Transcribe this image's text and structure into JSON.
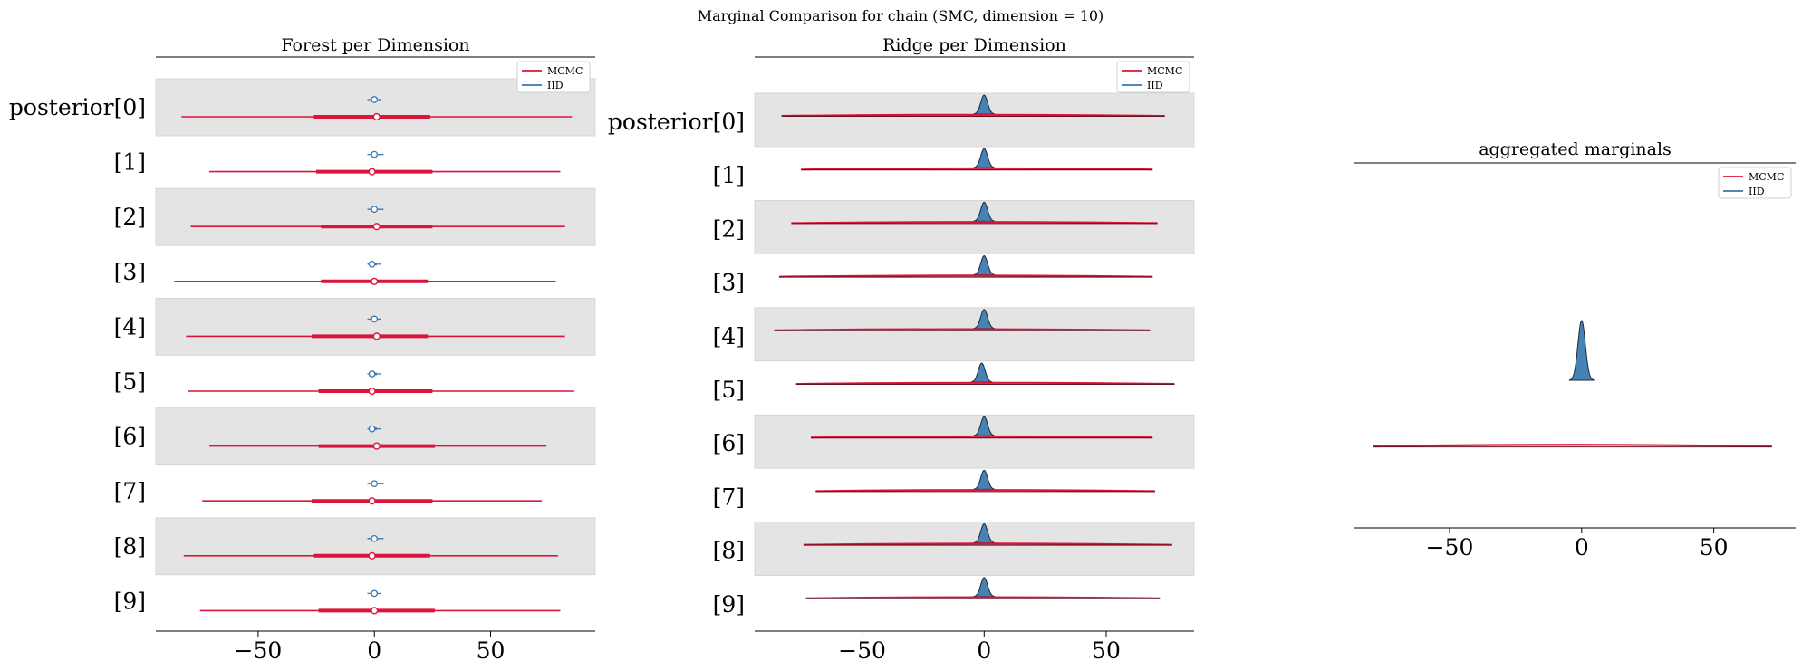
{
  "figure": {
    "suptitle": "Marginal Comparison for chain (SMC, dimension = 10)"
  },
  "colors": {
    "mcmc": "#dc143c",
    "iid": "#3a78b0",
    "iid_fill": "#4682b4",
    "band": "#e4e4e4"
  },
  "chart_data": [
    {
      "type": "forest",
      "title": "Forest per Dimension",
      "xlabel": "",
      "ylabel": "",
      "xlim": [
        -94,
        95
      ],
      "xticks": [
        -50,
        0,
        50
      ],
      "xticklabels": [
        "−50",
        "0",
        "50"
      ],
      "labels": [
        "posterior[0]",
        "[1]",
        "[2]",
        "[3]",
        "[4]",
        "[5]",
        "[6]",
        "[7]",
        "[8]",
        "[9]"
      ],
      "legend": {
        "placement": "top-right",
        "entries": [
          "MCMC",
          "IID"
        ]
      },
      "series": [
        {
          "name": "MCMC",
          "rows": [
            {
              "hdi94": [
                -83,
                85
              ],
              "iqr": [
                -26,
                24
              ],
              "median": 1
            },
            {
              "hdi94": [
                -71,
                80
              ],
              "iqr": [
                -25,
                25
              ],
              "median": -1
            },
            {
              "hdi94": [
                -79,
                82
              ],
              "iqr": [
                -23,
                25
              ],
              "median": 1
            },
            {
              "hdi94": [
                -86,
                78
              ],
              "iqr": [
                -23,
                23
              ],
              "median": 0
            },
            {
              "hdi94": [
                -81,
                82
              ],
              "iqr": [
                -27,
                23
              ],
              "median": 1
            },
            {
              "hdi94": [
                -80,
                86
              ],
              "iqr": [
                -24,
                25
              ],
              "median": -1
            },
            {
              "hdi94": [
                -71,
                74
              ],
              "iqr": [
                -24,
                26
              ],
              "median": 1
            },
            {
              "hdi94": [
                -74,
                72
              ],
              "iqr": [
                -27,
                25
              ],
              "median": -1
            },
            {
              "hdi94": [
                -82,
                79
              ],
              "iqr": [
                -26,
                24
              ],
              "median": -1
            },
            {
              "hdi94": [
                -75,
                80
              ],
              "iqr": [
                -24,
                26
              ],
              "median": 0
            }
          ]
        },
        {
          "name": "IID",
          "rows": [
            {
              "hdi94": [
                -3,
                3
              ],
              "iqr": [
                -1,
                1
              ],
              "median": 0
            },
            {
              "hdi94": [
                -3,
                4
              ],
              "iqr": [
                -1,
                1
              ],
              "median": 0
            },
            {
              "hdi94": [
                -3,
                4
              ],
              "iqr": [
                -1,
                1
              ],
              "median": 0
            },
            {
              "hdi94": [
                -3,
                3
              ],
              "iqr": [
                -1,
                1
              ],
              "median": -1
            },
            {
              "hdi94": [
                -3,
                3
              ],
              "iqr": [
                -1,
                1
              ],
              "median": 0
            },
            {
              "hdi94": [
                -3,
                3
              ],
              "iqr": [
                -1,
                1
              ],
              "median": -1
            },
            {
              "hdi94": [
                -3,
                3
              ],
              "iqr": [
                -1,
                1
              ],
              "median": -1
            },
            {
              "hdi94": [
                -3,
                4
              ],
              "iqr": [
                -1,
                1
              ],
              "median": 0
            },
            {
              "hdi94": [
                -3,
                4
              ],
              "iqr": [
                -1,
                1
              ],
              "median": 0
            },
            {
              "hdi94": [
                -3,
                3
              ],
              "iqr": [
                -1,
                1
              ],
              "median": 0
            }
          ]
        }
      ]
    },
    {
      "type": "ridge",
      "title": "Ridge per Dimension",
      "xlabel": "",
      "ylabel": "",
      "xlim": [
        -94,
        86
      ],
      "xticks": [
        -50,
        0,
        50
      ],
      "xticklabels": [
        "−50",
        "0",
        "50"
      ],
      "labels": [
        "posterior[0]",
        "[1]",
        "[2]",
        "[3]",
        "[4]",
        "[5]",
        "[6]",
        "[7]",
        "[8]",
        "[9]"
      ],
      "legend": {
        "placement": "top-right",
        "entries": [
          "MCMC",
          "IID"
        ]
      },
      "series": [
        {
          "name": "MCMC",
          "rows": [
            {
              "range": [
                -83,
                74
              ]
            },
            {
              "range": [
                -75,
                69
              ]
            },
            {
              "range": [
                -79,
                71
              ]
            },
            {
              "range": [
                -84,
                69
              ]
            },
            {
              "range": [
                -86,
                68
              ]
            },
            {
              "range": [
                -77,
                78
              ]
            },
            {
              "range": [
                -71,
                69
              ]
            },
            {
              "range": [
                -69,
                70
              ]
            },
            {
              "range": [
                -74,
                77
              ]
            },
            {
              "range": [
                -73,
                72
              ]
            }
          ]
        },
        {
          "name": "IID",
          "rows": [
            {
              "mean": 0,
              "sd": 1.4
            },
            {
              "mean": 0,
              "sd": 1.4
            },
            {
              "mean": 0,
              "sd": 1.4
            },
            {
              "mean": 0,
              "sd": 1.4
            },
            {
              "mean": 0,
              "sd": 1.4
            },
            {
              "mean": -1,
              "sd": 1.4
            },
            {
              "mean": 0,
              "sd": 1.4
            },
            {
              "mean": 0,
              "sd": 1.4
            },
            {
              "mean": 0,
              "sd": 1.4
            },
            {
              "mean": 0,
              "sd": 1.4
            }
          ]
        }
      ]
    },
    {
      "type": "area",
      "title": "aggregated marginals",
      "xlabel": "",
      "ylabel": "",
      "xlim": [
        -86,
        81
      ],
      "xticks": [
        -50,
        0,
        50
      ],
      "xticklabels": [
        "−50",
        "0",
        "50"
      ],
      "legend": {
        "placement": "top-right",
        "entries": [
          "MCMC",
          "IID"
        ]
      },
      "series": [
        {
          "name": "MCMC",
          "range": [
            -79,
            72
          ]
        },
        {
          "name": "IID",
          "mean": 0,
          "sd": 1.4
        }
      ]
    }
  ]
}
